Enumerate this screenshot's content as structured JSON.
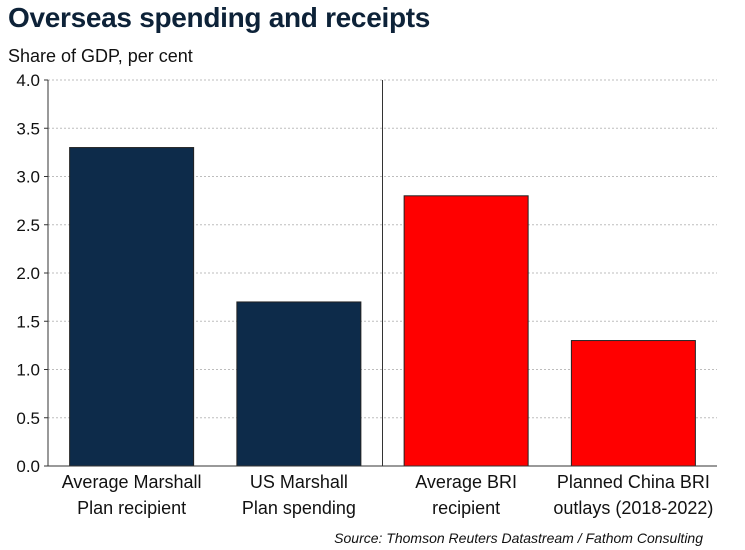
{
  "title": "Overseas spending and receipts",
  "subtitle": "Share of GDP, per cent",
  "source": "Source: Thomson Reuters Datastream / Fathom Consulting",
  "chart_data": {
    "type": "bar",
    "categories": [
      [
        "Average Marshall",
        "Plan recipient"
      ],
      [
        "US Marshall",
        "Plan spending"
      ],
      [
        "Average BRI",
        "recipient"
      ],
      [
        "Planned China BRI",
        "outlays (2018-2022)"
      ]
    ],
    "values": [
      3.3,
      1.7,
      2.8,
      1.3
    ],
    "bar_colors": [
      "#0d2b4a",
      "#0d2b4a",
      "#ff0000",
      "#ff0000"
    ],
    "yticks": [
      "0.0",
      "0.5",
      "1.0",
      "1.5",
      "2.0",
      "2.5",
      "3.0",
      "3.5",
      "4.0"
    ],
    "ylim": [
      0,
      4
    ],
    "grid": true,
    "xlabel": "",
    "ylabel": ""
  }
}
